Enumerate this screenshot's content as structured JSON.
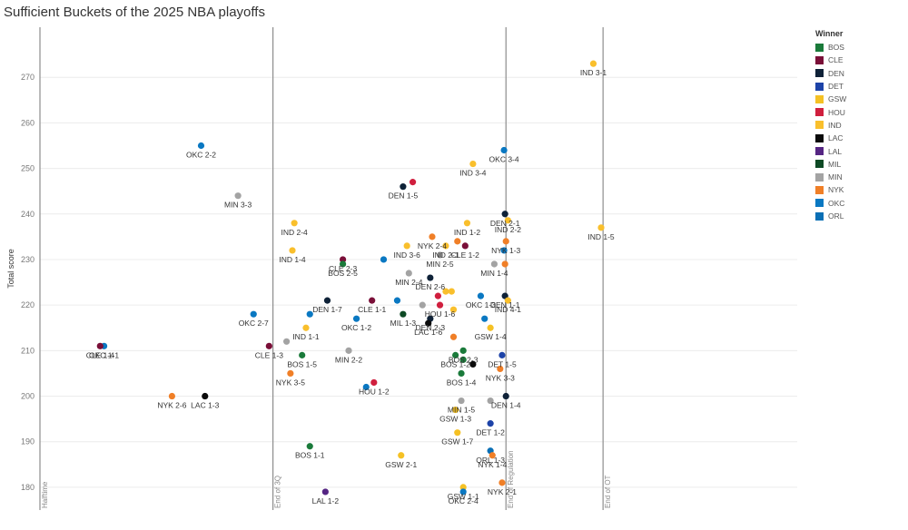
{
  "title": "Sufficient Buckets of the 2025 NBA playoffs",
  "legend_title": "Winner",
  "colors": {
    "BOS": "#1a7a3a",
    "CLE": "#7a0f38",
    "DEN": "#0f2238",
    "DET": "#1d43a8",
    "GSW": "#f5c124",
    "HOU": "#d01f3e",
    "IND": "#f9bf2c",
    "LAC": "#0b0b0b",
    "LAL": "#552583",
    "MIL": "#0e4a25",
    "MIN": "#a3a3a3",
    "NYK": "#f07f27",
    "OKC": "#0a78c2",
    "ORL": "#0a6fb5"
  },
  "chart_data": {
    "type": "scatter",
    "title": "Sufficient Buckets of the 2025 NBA playoffs",
    "xlabel": "",
    "ylabel": "Total score",
    "ylim": [
      175,
      281
    ],
    "yticks": [
      180,
      190,
      200,
      210,
      220,
      230,
      240,
      250,
      260,
      270
    ],
    "x_unit": "minutes of game time",
    "xlim": [
      24,
      63
    ],
    "grid": true,
    "legend_position": "right",
    "reference_lines": [
      {
        "x": 24,
        "label": "Halftime"
      },
      {
        "x": 36,
        "label": "End of 3Q"
      },
      {
        "x": 48,
        "label": "End of Regulation"
      },
      {
        "x": 53,
        "label": "End of OT"
      }
    ],
    "legend": [
      "BOS",
      "CLE",
      "DEN",
      "DET",
      "GSW",
      "HOU",
      "IND",
      "LAC",
      "LAL",
      "MIL",
      "MIN",
      "NYK",
      "OKC",
      "ORL"
    ],
    "points": [
      {
        "label": "IND 3-1",
        "team": "IND",
        "x": 52.5,
        "y": 273
      },
      {
        "label": "IND 1-5",
        "team": "IND",
        "x": 52.9,
        "y": 237
      },
      {
        "label": "OKC 2-2",
        "team": "OKC",
        "x": 32.3,
        "y": 255
      },
      {
        "label": "OKC 3-4",
        "team": "OKC",
        "x": 47.9,
        "y": 254
      },
      {
        "label": "IND 3-4",
        "team": "IND",
        "x": 46.3,
        "y": 251
      },
      {
        "label": "",
        "team": "HOU",
        "x": 43.2,
        "y": 247
      },
      {
        "label": "DEN 1-5",
        "team": "DEN",
        "x": 42.7,
        "y": 246
      },
      {
        "label": "MIN 3-3",
        "team": "MIN",
        "x": 34.2,
        "y": 244
      },
      {
        "label": "DEN 2-1",
        "team": "DEN",
        "x": 47.95,
        "y": 240
      },
      {
        "label": "IND 2-2",
        "team": "IND",
        "x": 48.1,
        "y": 238.6
      },
      {
        "label": "IND 2-4",
        "team": "IND",
        "x": 37.1,
        "y": 238
      },
      {
        "label": "IND 1-2",
        "team": "IND",
        "x": 46.0,
        "y": 238
      },
      {
        "label": "NYK 2-4",
        "team": "NYK",
        "x": 44.2,
        "y": 235
      },
      {
        "label": "NYK 1-3",
        "team": "NYK",
        "x": 48.0,
        "y": 234
      },
      {
        "label": "",
        "team": "NYK",
        "x": 45.5,
        "y": 234
      },
      {
        "label": "IND 2-1",
        "team": "IND",
        "x": 44.9,
        "y": 233
      },
      {
        "label": "CLE 1-2",
        "team": "CLE",
        "x": 45.9,
        "y": 233
      },
      {
        "label": "IND 3-6",
        "team": "IND",
        "x": 42.9,
        "y": 233
      },
      {
        "label": "",
        "team": "OKC",
        "x": 47.9,
        "y": 232
      },
      {
        "label": "IND 1-4",
        "team": "IND",
        "x": 37.0,
        "y": 232
      },
      {
        "label": "MIN 2-5",
        "team": "MIN",
        "x": 44.6,
        "y": 231
      },
      {
        "label": "CLE 2-3",
        "team": "CLE",
        "x": 39.6,
        "y": 230
      },
      {
        "label": "",
        "team": "OKC",
        "x": 41.7,
        "y": 230
      },
      {
        "label": "BOS 2-5",
        "team": "BOS",
        "x": 39.6,
        "y": 229
      },
      {
        "label": "MIN 1-4",
        "team": "MIN",
        "x": 47.4,
        "y": 229
      },
      {
        "label": "",
        "team": "NYK",
        "x": 47.95,
        "y": 229
      },
      {
        "label": "MIN 2-4",
        "team": "MIN",
        "x": 43.0,
        "y": 227
      },
      {
        "label": "DEN 2-6",
        "team": "DEN",
        "x": 44.1,
        "y": 226
      },
      {
        "label": "",
        "team": "IND",
        "x": 44.9,
        "y": 223
      },
      {
        "label": "",
        "team": "IND",
        "x": 45.2,
        "y": 223
      },
      {
        "label": "DEN 1-1",
        "team": "DEN",
        "x": 47.95,
        "y": 222
      },
      {
        "label": "OKC 1-3",
        "team": "OKC",
        "x": 46.7,
        "y": 222
      },
      {
        "label": "",
        "team": "HOU",
        "x": 44.5,
        "y": 222
      },
      {
        "label": "IND 4-1",
        "team": "IND",
        "x": 48.1,
        "y": 221
      },
      {
        "label": "DEN 1-7",
        "team": "DEN",
        "x": 38.8,
        "y": 221
      },
      {
        "label": "CLE 1-1",
        "team": "CLE",
        "x": 41.1,
        "y": 221
      },
      {
        "label": "",
        "team": "OKC",
        "x": 42.4,
        "y": 221
      },
      {
        "label": "HOU 1-6",
        "team": "HOU",
        "x": 44.6,
        "y": 220
      },
      {
        "label": "",
        "team": "MIN",
        "x": 43.7,
        "y": 220
      },
      {
        "label": "",
        "team": "IND",
        "x": 45.3,
        "y": 219
      },
      {
        "label": "",
        "team": "OKC",
        "x": 37.9,
        "y": 218
      },
      {
        "label": "OKC 2-7",
        "team": "OKC",
        "x": 35.0,
        "y": 218
      },
      {
        "label": "MIL 1-3",
        "team": "MIL",
        "x": 42.7,
        "y": 218
      },
      {
        "label": "OKC 1-2",
        "team": "OKC",
        "x": 40.3,
        "y": 217
      },
      {
        "label": "DEN 2-3",
        "team": "DEN",
        "x": 44.1,
        "y": 217
      },
      {
        "label": "",
        "team": "OKC",
        "x": 46.9,
        "y": 217
      },
      {
        "label": "LAC 1-6",
        "team": "LAC",
        "x": 44.0,
        "y": 216
      },
      {
        "label": "IND 1-1",
        "team": "IND",
        "x": 37.7,
        "y": 215
      },
      {
        "label": "GSW 1-4",
        "team": "GSW",
        "x": 47.2,
        "y": 215
      },
      {
        "label": "",
        "team": "NYK",
        "x": 45.3,
        "y": 213
      },
      {
        "label": "",
        "team": "MIN",
        "x": 36.7,
        "y": 212
      },
      {
        "label": "OKC 1-1",
        "team": "OKC",
        "x": 27.3,
        "y": 211
      },
      {
        "label": "CLE 1-4",
        "team": "CLE",
        "x": 27.1,
        "y": 211
      },
      {
        "label": "CLE 1-3",
        "team": "CLE",
        "x": 35.8,
        "y": 211
      },
      {
        "label": "BOS 2-3",
        "team": "BOS",
        "x": 45.8,
        "y": 210
      },
      {
        "label": "MIN 2-2",
        "team": "MIN",
        "x": 39.9,
        "y": 210
      },
      {
        "label": "BOS 1-2",
        "team": "BOS",
        "x": 45.4,
        "y": 209
      },
      {
        "label": "DET 1-5",
        "team": "DET",
        "x": 47.8,
        "y": 209
      },
      {
        "label": "BOS 1-5",
        "team": "BOS",
        "x": 37.5,
        "y": 209
      },
      {
        "label": "",
        "team": "BOS",
        "x": 45.8,
        "y": 208
      },
      {
        "label": "",
        "team": "LAC",
        "x": 46.3,
        "y": 207
      },
      {
        "label": "NYK 3-3",
        "team": "NYK",
        "x": 47.7,
        "y": 206
      },
      {
        "label": "BOS 1-4",
        "team": "BOS",
        "x": 45.7,
        "y": 205
      },
      {
        "label": "NYK 3-5",
        "team": "NYK",
        "x": 36.9,
        "y": 205
      },
      {
        "label": "HOU 1-2",
        "team": "HOU",
        "x": 41.2,
        "y": 203
      },
      {
        "label": "",
        "team": "OKC",
        "x": 40.8,
        "y": 202
      },
      {
        "label": "NYK 2-6",
        "team": "NYK",
        "x": 30.8,
        "y": 200
      },
      {
        "label": "LAC 1-3",
        "team": "LAC",
        "x": 32.5,
        "y": 200
      },
      {
        "label": "DEN 1-4",
        "team": "DEN",
        "x": 48.0,
        "y": 200
      },
      {
        "label": "MIN 1-5",
        "team": "MIN",
        "x": 45.7,
        "y": 199
      },
      {
        "label": "",
        "team": "MIN",
        "x": 47.2,
        "y": 199
      },
      {
        "label": "GSW 1-3",
        "team": "GSW",
        "x": 45.4,
        "y": 197
      },
      {
        "label": "DET 1-2",
        "team": "DET",
        "x": 47.2,
        "y": 194
      },
      {
        "label": "GSW 1-7",
        "team": "GSW",
        "x": 45.5,
        "y": 192
      },
      {
        "label": "BOS 1-1",
        "team": "BOS",
        "x": 37.9,
        "y": 189
      },
      {
        "label": "ORL 1-3",
        "team": "ORL",
        "x": 47.2,
        "y": 188
      },
      {
        "label": "NYK 1-4",
        "team": "NYK",
        "x": 47.3,
        "y": 187
      },
      {
        "label": "GSW 2-1",
        "team": "GSW",
        "x": 42.6,
        "y": 187
      },
      {
        "label": "NYK 2-1",
        "team": "NYK",
        "x": 47.8,
        "y": 181
      },
      {
        "label": "GSW 1-1",
        "team": "GSW",
        "x": 45.8,
        "y": 180
      },
      {
        "label": "OKC 2-4",
        "team": "OKC",
        "x": 45.8,
        "y": 179
      },
      {
        "label": "LAL 1-2",
        "team": "LAL",
        "x": 38.7,
        "y": 179
      }
    ]
  }
}
